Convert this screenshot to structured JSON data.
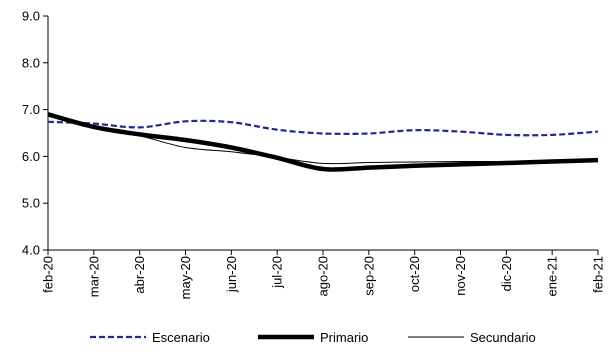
{
  "chart_data": {
    "type": "line",
    "title": "",
    "xlabel": "",
    "ylabel": "",
    "x": [
      "feb-20",
      "mar-20",
      "abr-20",
      "may-20",
      "jun-20",
      "jul-20",
      "ago-20",
      "sep-20",
      "oct-20",
      "nov-20",
      "dic-20",
      "ene-21",
      "feb-21"
    ],
    "yticks": [
      "4.0",
      "5.0",
      "6.0",
      "7.0",
      "8.0",
      "9.0"
    ],
    "ylim": [
      4.0,
      9.0
    ],
    "grid": false,
    "legend_position": "bottom",
    "series": [
      {
        "name": "Escenario",
        "style": "dashed",
        "color": "#1f2a8c",
        "values": [
          6.74,
          6.7,
          6.62,
          6.75,
          6.73,
          6.57,
          6.49,
          6.49,
          6.56,
          6.53,
          6.46,
          6.46,
          6.53
        ]
      },
      {
        "name": "Primario",
        "style": "thick",
        "color": "#000000",
        "values": [
          6.9,
          6.63,
          6.47,
          6.35,
          6.19,
          5.97,
          5.73,
          5.76,
          5.8,
          5.83,
          5.86,
          5.89,
          5.92
        ]
      },
      {
        "name": "Secundario",
        "style": "thin",
        "color": "#000000",
        "values": [
          6.9,
          6.63,
          6.44,
          6.19,
          6.1,
          5.98,
          5.85,
          5.87,
          5.88,
          5.89,
          5.89,
          5.9,
          5.92
        ]
      }
    ]
  }
}
